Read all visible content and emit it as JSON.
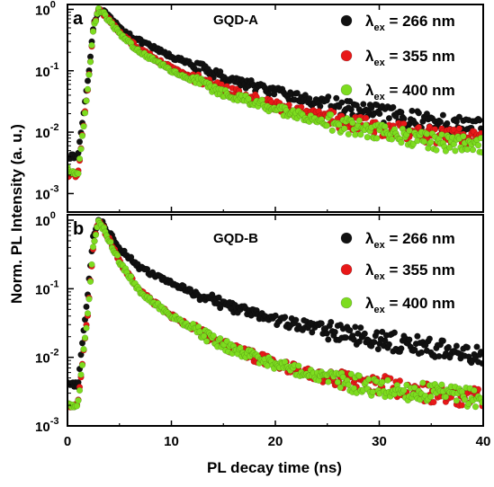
{
  "figure": {
    "ylabel": "Norm. PL Intensity (a. u.)",
    "xlabel": "PL decay time (ns)"
  },
  "chart_data": [
    {
      "type": "scatter",
      "panel_letter": "a",
      "title": "GQD-A",
      "xlabel": "PL decay time (ns)",
      "ylabel": "Norm. PL Intensity (a. u.)",
      "xlim": [
        0,
        40
      ],
      "ylim": [
        0.0005,
        1.2
      ],
      "yscale": "log",
      "x_ticks": [
        0,
        10,
        20,
        30,
        40
      ],
      "y_ticks": [
        {
          "base": "10",
          "exp": "0"
        },
        {
          "base": "10",
          "exp": "-1"
        },
        {
          "base": "10",
          "exp": "-2"
        },
        {
          "base": "10",
          "exp": "-3"
        }
      ],
      "x_tick_labels_shown": false,
      "legend_position": "top-right",
      "grid": false,
      "series": [
        {
          "lambda_label": "λ",
          "lambda_sub": "ex",
          "value_label": " = 266 nm",
          "color": "#111111",
          "x": [
            0,
            1,
            2,
            2.5,
            3,
            3.5,
            5,
            7,
            10,
            15,
            20,
            25,
            30,
            35,
            40
          ],
          "y": [
            0.004,
            0.004,
            0.08,
            0.55,
            1.0,
            0.9,
            0.5,
            0.3,
            0.17,
            0.08,
            0.045,
            0.028,
            0.02,
            0.015,
            0.012
          ]
        },
        {
          "lambda_label": "λ",
          "lambda_sub": "ex",
          "value_label": " = 355 nm",
          "color": "#e81818",
          "x": [
            0,
            1,
            2,
            2.5,
            3,
            3.5,
            5,
            7,
            10,
            15,
            20,
            25,
            30,
            35,
            40
          ],
          "y": [
            0.002,
            0.002,
            0.06,
            0.5,
            1.0,
            0.85,
            0.42,
            0.22,
            0.11,
            0.05,
            0.027,
            0.017,
            0.012,
            0.009,
            0.008
          ]
        },
        {
          "lambda_label": "λ",
          "lambda_sub": "ex",
          "value_label": " = 400 nm",
          "color": "#7ddc1f",
          "x": [
            0,
            1,
            2,
            2.5,
            3,
            3.5,
            5,
            7,
            10,
            15,
            20,
            25,
            30,
            35,
            40
          ],
          "y": [
            0.0025,
            0.002,
            0.06,
            0.5,
            1.0,
            0.85,
            0.4,
            0.2,
            0.1,
            0.045,
            0.024,
            0.015,
            0.01,
            0.007,
            0.006
          ]
        }
      ]
    },
    {
      "type": "scatter",
      "panel_letter": "b",
      "title": "GQD-B",
      "xlabel": "PL decay time (ns)",
      "ylabel": "Norm. PL Intensity (a. u.)",
      "xlim": [
        0,
        40
      ],
      "ylim": [
        0.001,
        1.2
      ],
      "yscale": "log",
      "x_ticks": [
        0,
        10,
        20,
        30,
        40
      ],
      "x_tick_labels": [
        "0",
        "10",
        "20",
        "30",
        "40"
      ],
      "y_ticks": [
        {
          "base": "10",
          "exp": "0"
        },
        {
          "base": "10",
          "exp": "-1"
        },
        {
          "base": "10",
          "exp": "-2"
        },
        {
          "base": "10",
          "exp": "-3"
        }
      ],
      "legend_position": "top-right",
      "grid": false,
      "series": [
        {
          "lambda_label": "λ",
          "lambda_sub": "ex",
          "value_label": " = 266 nm",
          "color": "#111111",
          "x": [
            0,
            1,
            2,
            2.5,
            3,
            3.5,
            5,
            7,
            10,
            15,
            20,
            25,
            30,
            35,
            40
          ],
          "y": [
            0.004,
            0.004,
            0.1,
            0.6,
            1.0,
            0.85,
            0.4,
            0.2,
            0.12,
            0.06,
            0.035,
            0.025,
            0.018,
            0.014,
            0.01
          ]
        },
        {
          "lambda_label": "λ",
          "lambda_sub": "ex",
          "value_label": " = 355 nm",
          "color": "#e81818",
          "x": [
            0,
            1,
            2,
            2.5,
            3,
            3.5,
            5,
            7,
            10,
            15,
            20,
            25,
            30,
            35,
            40
          ],
          "y": [
            0.002,
            0.002,
            0.05,
            0.45,
            1.0,
            0.75,
            0.25,
            0.09,
            0.04,
            0.015,
            0.008,
            0.005,
            0.004,
            0.003,
            0.0025
          ]
        },
        {
          "lambda_label": "λ",
          "lambda_sub": "ex",
          "value_label": " = 400 nm",
          "color": "#7ddc1f",
          "x": [
            0,
            1,
            2,
            2.5,
            3,
            3.5,
            5,
            7,
            10,
            15,
            20,
            25,
            30,
            35,
            40
          ],
          "y": [
            0.002,
            0.002,
            0.05,
            0.45,
            1.0,
            0.75,
            0.25,
            0.09,
            0.04,
            0.015,
            0.008,
            0.005,
            0.0035,
            0.003,
            0.0025
          ]
        }
      ]
    }
  ]
}
